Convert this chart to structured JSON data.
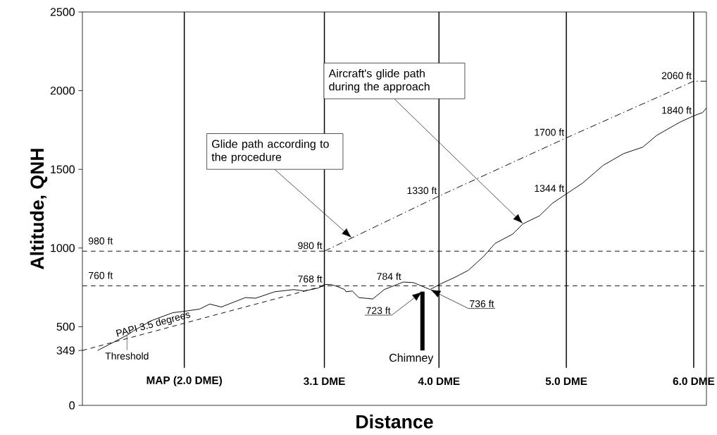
{
  "chart_data": {
    "type": "line",
    "xlabel": "Distance",
    "ylabel": "Altitude, QNH",
    "xlim": [
      1.2,
      6.1
    ],
    "ylim": [
      0,
      2500
    ],
    "xticks": [
      {
        "value": 2.0,
        "label": "MAP (2.0 DME)"
      },
      {
        "value": 3.1,
        "label": "3.1 DME"
      },
      {
        "value": 4.0,
        "label": "4.0 DME"
      },
      {
        "value": 5.0,
        "label": "5.0 DME"
      },
      {
        "value": 6.0,
        "label": "6.0 DME"
      }
    ],
    "yticks": [
      0,
      349,
      500,
      1000,
      1500,
      2000,
      2500
    ],
    "grid": "x",
    "series": [
      {
        "color": "#000000",
        "line_style": "solid",
        "x": [
          1.32,
          1.55,
          1.6,
          1.74,
          1.91,
          2.0,
          2.12,
          2.2,
          2.29,
          2.48,
          2.56,
          2.71,
          2.86,
          2.94,
          3.05,
          3.1,
          3.15,
          3.19,
          3.26,
          3.27,
          3.32,
          3.37,
          3.48,
          3.57,
          3.72,
          3.8,
          3.93,
          4.01,
          4.12,
          4.23,
          4.35,
          4.44,
          4.58,
          4.66,
          4.79,
          4.89,
          5.0,
          5.13,
          5.29,
          5.45,
          5.6,
          5.71,
          5.79,
          5.89,
          6.0,
          6.07,
          6.1
        ],
        "values": [
          349,
          446,
          473,
          538,
          589,
          598,
          612,
          644,
          625,
          685,
          681,
          722,
          736,
          727,
          745,
          768,
          768,
          759,
          736,
          722,
          727,
          685,
          676,
          736,
          784,
          780,
          736,
          771,
          812,
          858,
          946,
          1029,
          1089,
          1154,
          1205,
          1284,
          1344,
          1414,
          1526,
          1600,
          1641,
          1716,
          1753,
          1799,
          1840,
          1861,
          1890
        ],
        "value_labels": [
          null,
          null,
          null,
          null,
          null,
          null,
          null,
          null,
          null,
          null,
          null,
          null,
          null,
          null,
          null,
          "768 ft",
          null,
          null,
          null,
          null,
          null,
          null,
          null,
          null,
          "784 ft",
          null,
          null,
          null,
          null,
          null,
          null,
          null,
          null,
          null,
          null,
          null,
          "1344 ft",
          null,
          null,
          null,
          null,
          null,
          null,
          null,
          "1840 ft",
          null,
          null
        ]
      },
      {
        "color": "#000000",
        "line_style": "dashdot",
        "x": [
          3.1,
          4.0,
          5.0,
          6.0,
          6.1
        ],
        "values": [
          980,
          1330,
          1700,
          2060,
          2060
        ],
        "value_labels": [
          "980 ft",
          "1330 ft",
          "1700 ft",
          "2060 ft",
          null
        ]
      },
      {
        "name": "PAPI 3.5 degrees",
        "color": "#000000",
        "line_style": "dashed",
        "x": [
          1.2,
          3.1
        ],
        "values": [
          349,
          760
        ]
      },
      {
        "type": "bar",
        "name": "Chimney",
        "color": "#000000",
        "x": [
          3.87
        ],
        "base": [
          349
        ],
        "values": [
          374
        ]
      }
    ],
    "ref_lines": [
      {
        "axis": "y",
        "value": 980,
        "label": "980 ft",
        "line_style": "dashed"
      },
      {
        "axis": "y",
        "value": 760,
        "label": "760 ft",
        "line_style": "dashed"
      }
    ],
    "annotations": [
      "Glide path according to the procedure",
      "Aircraft's glide path during the approach",
      "723 ft",
      "736 ft",
      {
        "text": "Threshold",
        "x": 1.55,
        "y": 446
      }
    ]
  }
}
